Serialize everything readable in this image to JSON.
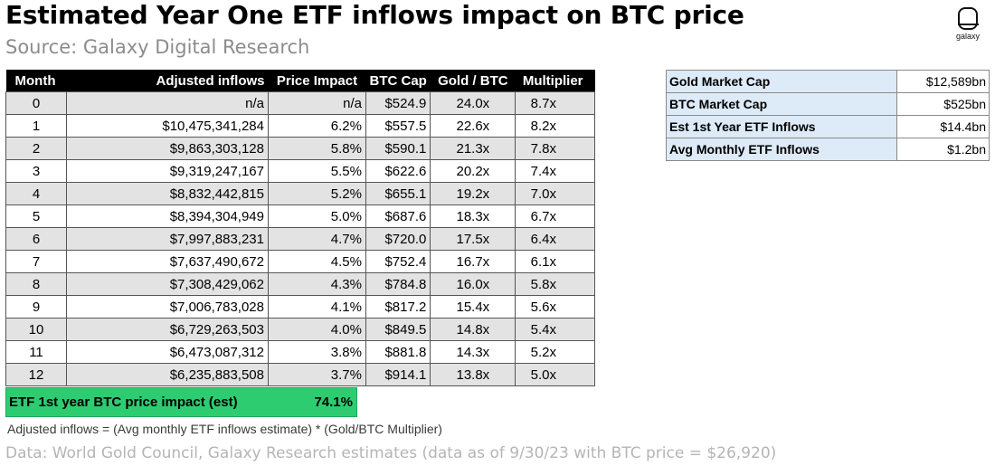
{
  "title": "Estimated Year One ETF inflows impact on BTC price",
  "subtitle": "Source: Galaxy Digital Research",
  "logo": {
    "icon": "galaxy-logo-icon",
    "word": "galaxy"
  },
  "table": {
    "headers": [
      "Month",
      "Adjusted inflows",
      "Price Impact",
      "BTC Cap",
      "Gold / BTC",
      "Multiplier"
    ],
    "rows": [
      [
        "0",
        "n/a",
        "n/a",
        "$524.9",
        "24.0x",
        "8.7x"
      ],
      [
        "1",
        "$10,475,341,284",
        "6.2%",
        "$557.5",
        "22.6x",
        "8.2x"
      ],
      [
        "2",
        "$9,863,303,128",
        "5.8%",
        "$590.1",
        "21.3x",
        "7.8x"
      ],
      [
        "3",
        "$9,319,247,167",
        "5.5%",
        "$622.6",
        "20.2x",
        "7.4x"
      ],
      [
        "4",
        "$8,832,442,815",
        "5.2%",
        "$655.1",
        "19.2x",
        "7.0x"
      ],
      [
        "5",
        "$8,394,304,949",
        "5.0%",
        "$687.6",
        "18.3x",
        "6.7x"
      ],
      [
        "6",
        "$7,997,883,231",
        "4.7%",
        "$720.0",
        "17.5x",
        "6.4x"
      ],
      [
        "7",
        "$7,637,490,672",
        "4.5%",
        "$752.4",
        "16.7x",
        "6.1x"
      ],
      [
        "8",
        "$7,308,429,062",
        "4.3%",
        "$784.8",
        "16.0x",
        "5.8x"
      ],
      [
        "9",
        "$7,006,783,028",
        "4.1%",
        "$817.2",
        "15.4x",
        "5.6x"
      ],
      [
        "10",
        "$6,729,263,503",
        "4.0%",
        "$849.5",
        "14.8x",
        "5.4x"
      ],
      [
        "11",
        "$6,473,087,312",
        "3.8%",
        "$881.8",
        "14.3x",
        "5.2x"
      ],
      [
        "12",
        "$6,235,883,508",
        "3.7%",
        "$914.1",
        "13.8x",
        "5.0x"
      ]
    ]
  },
  "total": {
    "label": "ETF 1st year BTC price impact (est)",
    "value": "74.1%",
    "color": "#2ecc71"
  },
  "side_table": [
    {
      "label": "Gold Market Cap",
      "value": "$12,589bn"
    },
    {
      "label": "BTC Market Cap",
      "value": "$525bn"
    },
    {
      "label": "Est 1st Year ETF Inflows",
      "value": "$14.4bn"
    },
    {
      "label": "Avg Monthly ETF Inflows",
      "value": "$1.2bn"
    }
  ],
  "note": "Adjusted inflows = (Avg monthly ETF inflows estimate) * (Gold/BTC Multiplier)",
  "footer": "Data: World Gold Council, Galaxy Research estimates (data as of 9/30/23 with BTC price = $26,920)"
}
